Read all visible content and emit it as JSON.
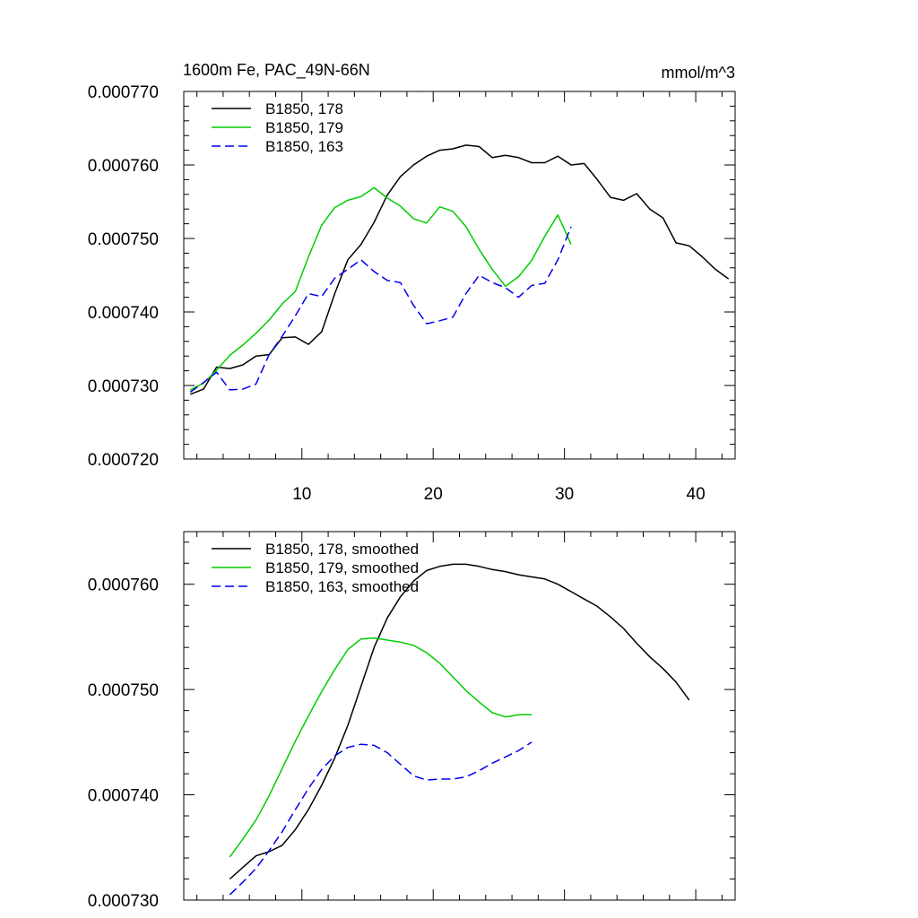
{
  "chart_data": [
    {
      "type": "line",
      "title": "1600m Fe, PAC_49N-66N",
      "units": "mmol/m^3",
      "xlabel": "",
      "ylabel": "",
      "xlim": [
        1,
        43
      ],
      "ylim": [
        0.00072,
        0.00077
      ],
      "xticks": [
        10,
        20,
        30,
        40
      ],
      "xtick_labels": [
        "10",
        "20",
        "30",
        "40"
      ],
      "yticks": [
        0.00072,
        0.00073,
        0.00074,
        0.00075,
        0.00076,
        0.00077
      ],
      "ytick_labels": [
        "0.000720",
        "0.000730",
        "0.000740",
        "0.000750",
        "0.000760",
        "0.000770"
      ],
      "legend_position": "top-left",
      "series": [
        {
          "name": "B1850, 178",
          "color": "#000000",
          "dash": "solid",
          "x": [
            1.5,
            2.5,
            3.5,
            4.5,
            5.5,
            6.5,
            7.5,
            8.5,
            9.5,
            10.5,
            11.5,
            12.5,
            13.5,
            14.5,
            15.5,
            16.5,
            17.5,
            18.5,
            19.5,
            20.5,
            21.5,
            22.5,
            23.5,
            24.5,
            25.5,
            26.5,
            27.5,
            28.5,
            29.5,
            30.5,
            31.5,
            32.5,
            33.5,
            34.5,
            35.5,
            36.5,
            37.5,
            38.5,
            39.5,
            40.5,
            41.5,
            42.5
          ],
          "values": [
            0.0007288,
            0.0007295,
            0.0007325,
            0.0007323,
            0.0007328,
            0.000734,
            0.0007342,
            0.0007365,
            0.0007366,
            0.0007356,
            0.0007373,
            0.0007425,
            0.0007471,
            0.0007492,
            0.0007522,
            0.0007559,
            0.0007584,
            0.00076,
            0.0007612,
            0.000762,
            0.0007622,
            0.0007627,
            0.0007625,
            0.000761,
            0.0007613,
            0.000761,
            0.0007603,
            0.0007603,
            0.0007612,
            0.00076,
            0.0007602,
            0.000758,
            0.0007556,
            0.0007552,
            0.0007561,
            0.000754,
            0.0007528,
            0.0007494,
            0.000749,
            0.0007475,
            0.0007458,
            0.0007445
          ]
        },
        {
          "name": "B1850, 179",
          "color": "#00cc00",
          "dash": "solid",
          "x": [
            1.5,
            2.5,
            3.5,
            4.5,
            5.5,
            6.5,
            7.5,
            8.5,
            9.5,
            10.5,
            11.5,
            12.5,
            13.5,
            14.5,
            15.5,
            16.5,
            17.5,
            18.5,
            19.5,
            20.5,
            21.5,
            22.5,
            23.5,
            24.5,
            25.5,
            26.5,
            27.5,
            28.5,
            29.5,
            30.5
          ],
          "values": [
            0.0007294,
            0.0007303,
            0.0007321,
            0.0007341,
            0.0007355,
            0.0007371,
            0.0007389,
            0.0007411,
            0.0007428,
            0.0007475,
            0.0007518,
            0.0007542,
            0.0007552,
            0.0007557,
            0.0007569,
            0.0007555,
            0.0007544,
            0.0007527,
            0.0007521,
            0.0007543,
            0.0007537,
            0.0007516,
            0.0007485,
            0.0007458,
            0.0007435,
            0.0007448,
            0.000747,
            0.0007503,
            0.0007532,
            0.0007492
          ]
        },
        {
          "name": "B1850, 163",
          "color": "#0000ee",
          "dash": "dashed",
          "x": [
            1.5,
            2.5,
            3.5,
            4.5,
            5.5,
            6.5,
            7.5,
            8.5,
            9.5,
            10.5,
            11.5,
            12.5,
            13.5,
            14.5,
            15.5,
            16.5,
            17.5,
            18.5,
            19.5,
            20.5,
            21.5,
            22.5,
            23.5,
            24.5,
            25.5,
            26.5,
            27.5,
            28.5,
            29.5,
            30.5
          ],
          "values": [
            0.0007291,
            0.0007304,
            0.0007318,
            0.0007294,
            0.0007295,
            0.0007302,
            0.0007342,
            0.0007367,
            0.0007395,
            0.0007425,
            0.0007421,
            0.0007446,
            0.0007458,
            0.0007471,
            0.0007455,
            0.0007443,
            0.000744,
            0.0007409,
            0.0007384,
            0.0007388,
            0.0007393,
            0.0007425,
            0.000745,
            0.000744,
            0.0007433,
            0.000742,
            0.0007436,
            0.0007439,
            0.0007471,
            0.0007516
          ]
        }
      ]
    },
    {
      "type": "line",
      "title": "",
      "xlabel": "",
      "ylabel": "",
      "xlim": [
        1,
        43
      ],
      "ylim": [
        0.00073,
        0.000765
      ],
      "xticks": [
        10,
        20,
        30,
        40
      ],
      "xtick_labels": [
        "",
        "",
        "",
        ""
      ],
      "yticks": [
        0.00073,
        0.00074,
        0.00075,
        0.00076
      ],
      "ytick_labels": [
        "0.000730",
        "0.000740",
        "0.000750",
        "0.000760"
      ],
      "legend_position": "top-left",
      "series": [
        {
          "name": "B1850, 178, smoothed",
          "color": "#000000",
          "dash": "solid",
          "x": [
            4.5,
            5.5,
            6.5,
            7.5,
            8.5,
            9.5,
            10.5,
            11.5,
            12.5,
            13.5,
            14.5,
            15.5,
            16.5,
            17.5,
            18.5,
            19.5,
            20.5,
            21.5,
            22.5,
            23.5,
            24.5,
            25.5,
            26.5,
            27.5,
            28.5,
            29.5,
            30.5,
            31.5,
            32.5,
            33.5,
            34.5,
            35.5,
            36.5,
            37.5,
            38.5,
            39.5
          ],
          "values": [
            0.000732,
            0.0007331,
            0.0007342,
            0.0007346,
            0.0007352,
            0.0007367,
            0.0007386,
            0.0007409,
            0.0007435,
            0.0007466,
            0.0007503,
            0.000754,
            0.0007568,
            0.0007588,
            0.0007603,
            0.0007613,
            0.0007617,
            0.0007619,
            0.0007619,
            0.0007617,
            0.0007614,
            0.0007612,
            0.0007609,
            0.0007607,
            0.0007605,
            0.00076,
            0.0007593,
            0.0007586,
            0.0007579,
            0.0007569,
            0.0007558,
            0.0007544,
            0.0007531,
            0.000752,
            0.0007507,
            0.000749
          ]
        },
        {
          "name": "B1850, 179, smoothed",
          "color": "#00cc00",
          "dash": "solid",
          "x": [
            4.5,
            5.5,
            6.5,
            7.5,
            8.5,
            9.5,
            10.5,
            11.5,
            12.5,
            13.5,
            14.5,
            15.5,
            16.5,
            17.5,
            18.5,
            19.5,
            20.5,
            21.5,
            22.5,
            23.5,
            24.5,
            25.5,
            26.5,
            27.5
          ],
          "values": [
            0.0007341,
            0.0007358,
            0.0007376,
            0.0007399,
            0.0007425,
            0.0007451,
            0.0007475,
            0.0007498,
            0.0007519,
            0.0007538,
            0.0007548,
            0.0007549,
            0.0007547,
            0.0007545,
            0.0007542,
            0.0007535,
            0.0007525,
            0.0007512,
            0.0007499,
            0.0007488,
            0.0007478,
            0.0007474,
            0.0007476,
            0.0007476
          ]
        },
        {
          "name": "B1850, 163, smoothed",
          "color": "#0000ee",
          "dash": "dashed",
          "x": [
            4.5,
            5.5,
            6.5,
            7.5,
            8.5,
            9.5,
            10.5,
            11.5,
            12.5,
            13.5,
            14.5,
            15.5,
            16.5,
            17.5,
            18.5,
            19.5,
            20.5,
            21.5,
            22.5,
            23.5,
            24.5,
            25.5,
            26.5,
            27.5
          ],
          "values": [
            0.0007305,
            0.0007317,
            0.000733,
            0.0007347,
            0.0007365,
            0.0007386,
            0.0007406,
            0.0007424,
            0.0007437,
            0.0007445,
            0.0007448,
            0.0007447,
            0.000744,
            0.0007429,
            0.0007418,
            0.0007414,
            0.0007415,
            0.0007415,
            0.0007417,
            0.0007423,
            0.000743,
            0.0007436,
            0.0007442,
            0.000745
          ]
        }
      ]
    }
  ]
}
